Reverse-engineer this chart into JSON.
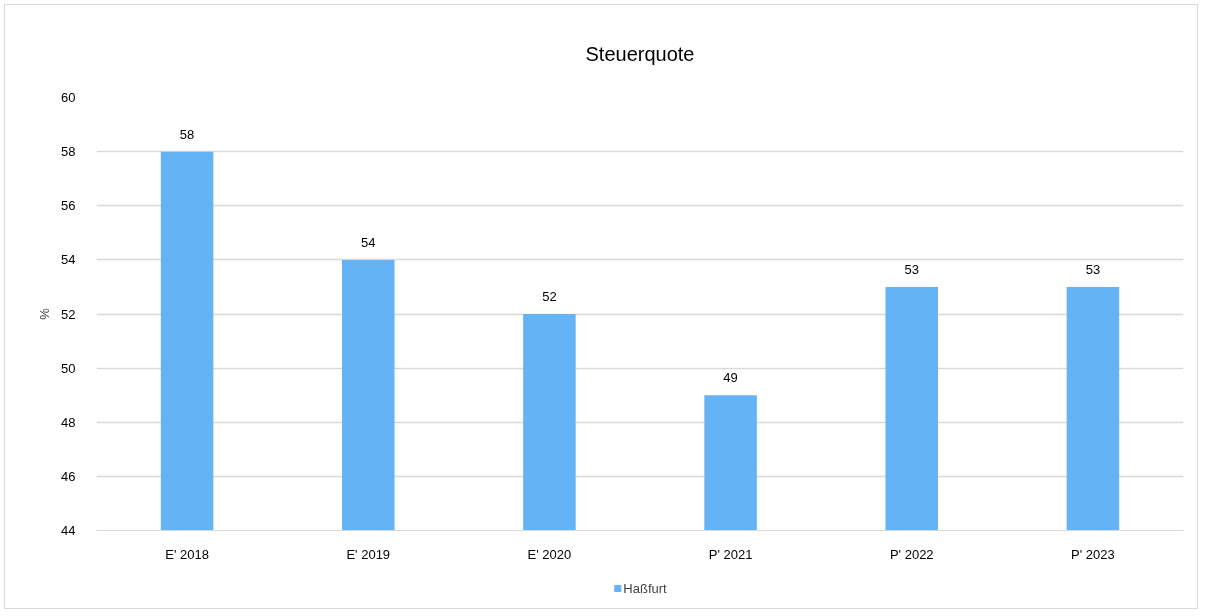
{
  "chart_data": {
    "type": "bar",
    "title": "Steuerquote",
    "ylabel": "%",
    "categories": [
      "E' 2018",
      "E' 2019",
      "E' 2020",
      "P' 2021",
      "P' 2022",
      "P' 2023"
    ],
    "series": [
      {
        "name": "Haßfurt",
        "color": "#63b3f5",
        "values": [
          58,
          54,
          52,
          49,
          53,
          53
        ]
      }
    ],
    "ylim": [
      44,
      60
    ],
    "yticks": [
      44,
      46,
      48,
      50,
      52,
      54,
      56,
      58,
      60
    ],
    "grid": "y",
    "legend": "bottom",
    "data_labels": true
  }
}
